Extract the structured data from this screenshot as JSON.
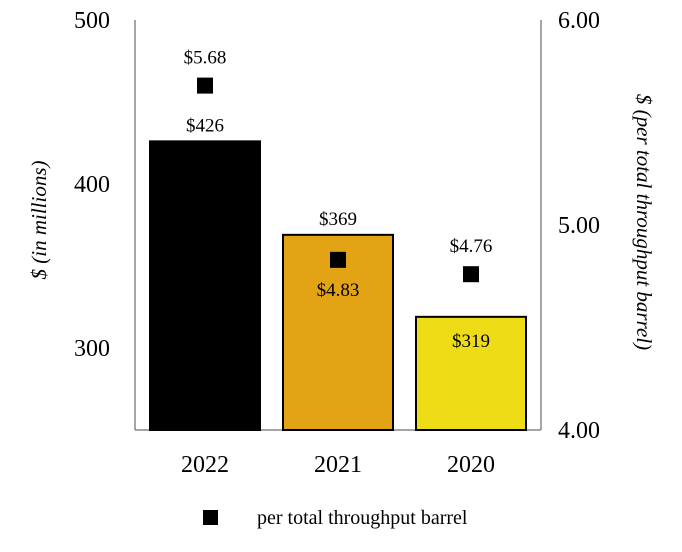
{
  "chart_data": {
    "type": "bar",
    "categories": [
      "2022",
      "2021",
      "2020"
    ],
    "series": [
      {
        "values": [
          426,
          369,
          319
        ],
        "labels": [
          "$426",
          "$369",
          "$319"
        ],
        "colors": [
          "#000000",
          "#E2A414",
          "#EEDD16"
        ],
        "axis": "left"
      },
      {
        "name": "per total throughput barrel",
        "type": "scatter",
        "marker": "square",
        "values": [
          5.68,
          4.83,
          4.76
        ],
        "labels": [
          "$5.68",
          "$4.83",
          "$4.76"
        ],
        "axis": "right"
      }
    ],
    "ylabel": "$ (in millions)",
    "y2label": "$ (per total throughput barrel)",
    "ylim": [
      250,
      500
    ],
    "y2lim": [
      4.0,
      6.0
    ],
    "yticks": [
      {
        "value": 300,
        "label": "300"
      },
      {
        "value": 400,
        "label": "400"
      },
      {
        "value": 500,
        "label": "500"
      }
    ],
    "y2ticks": [
      {
        "value": 4.0,
        "label": "4.00"
      },
      {
        "value": 5.0,
        "label": "5.00"
      },
      {
        "value": 6.0,
        "label": "6.00"
      }
    ],
    "grid": false,
    "legend": "bottom"
  }
}
